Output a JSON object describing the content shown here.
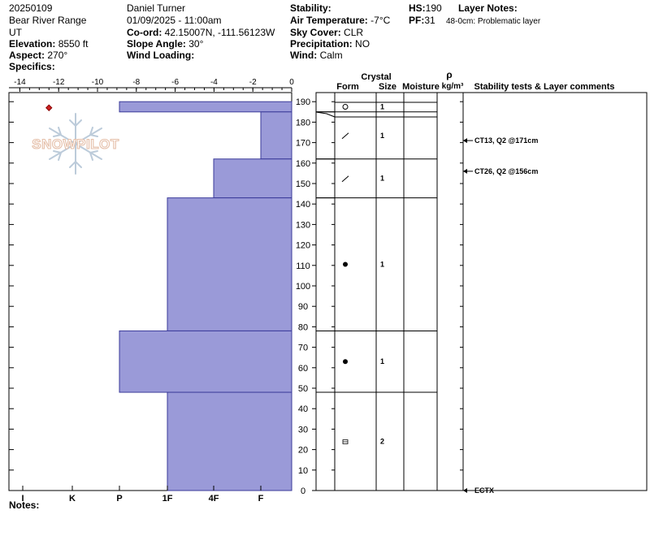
{
  "header": {
    "date_code": "20250109",
    "range": "Bear River Range",
    "state": "UT",
    "elevation_label": "Elevation:",
    "elevation_value": "8550 ft",
    "aspect_label": "Aspect:",
    "aspect_value": "270°",
    "specifics_label": "Specifics:",
    "observer": "Daniel Turner",
    "datetime": "01/09/2025 - 11:00am",
    "coord_label": "Co-ord:",
    "coord_value": "42.15007N, -111.56123W",
    "slope_label": "Slope Angle:",
    "slope_value": "30°",
    "wind_loading_label": "Wind Loading:",
    "stability_label": "Stability:",
    "air_temp_label": "Air Temperature:",
    "air_temp_value": "-7°C",
    "sky_label": "Sky Cover:",
    "sky_value": "CLR",
    "precip_label": "Precipitation:",
    "precip_value": "NO",
    "wind_label": "Wind:",
    "wind_value": "Calm",
    "hs_label": "HS:",
    "hs_value": "190",
    "pf_label": "PF:",
    "pf_value": "31",
    "layer_notes_label": "Layer Notes:",
    "layer_note": "48-0cm: Problematic layer"
  },
  "watermark": {
    "text": "SNOWPILOT"
  },
  "notes_label": "Notes:",
  "chart_data": {
    "type": "bar",
    "temperature_axis": {
      "ticks": [
        -14,
        -12,
        -10,
        -8,
        -6,
        -4,
        -2,
        0
      ],
      "range": [
        -14.5,
        0
      ]
    },
    "hardness_axis": {
      "labels": [
        "I",
        "K",
        "P",
        "1F",
        "4F",
        "F"
      ]
    },
    "height_axis": {
      "range": [
        0,
        190
      ],
      "ticks": [
        0,
        10,
        20,
        30,
        40,
        50,
        60,
        70,
        80,
        90,
        100,
        110,
        120,
        130,
        140,
        150,
        160,
        170,
        180,
        190
      ]
    },
    "temperature_profile": [
      {
        "height": 187,
        "temp": -12.5
      }
    ],
    "hardness_layers": [
      {
        "top": 190,
        "bottom": 185,
        "hardness": "P"
      },
      {
        "top": 185,
        "bottom": 162,
        "hardness": "F"
      },
      {
        "top": 162,
        "bottom": 143,
        "hardness": "4F"
      },
      {
        "top": 143,
        "bottom": 78,
        "hardness": "1F"
      },
      {
        "top": 78,
        "bottom": 48,
        "hardness": "P"
      },
      {
        "top": 48,
        "bottom": 0,
        "hardness": "1F"
      }
    ],
    "columns": {
      "crystal": "Crystal",
      "form": "Form",
      "size": "Size",
      "moisture": "Moisture",
      "rho": "ρ",
      "density_unit": "kg/m³",
      "comments": "Stability tests & Layer comments"
    },
    "crystal_layers": [
      {
        "top": 190,
        "bottom": 185,
        "form": "circle",
        "size": "1"
      },
      {
        "top": 185,
        "bottom": 162,
        "form": "slash",
        "size": "1"
      },
      {
        "top": 162,
        "bottom": 143,
        "form": "slash",
        "size": "1"
      },
      {
        "top": 143,
        "bottom": 78,
        "form": "dot",
        "size": "1"
      },
      {
        "top": 78,
        "bottom": 48,
        "form": "dot",
        "size": "1"
      },
      {
        "top": 48,
        "bottom": 0,
        "form": "facet",
        "size": "2"
      }
    ],
    "stability_tests": [
      {
        "height": 171,
        "text": "CT13, Q2 @171cm"
      },
      {
        "height": 156,
        "text": "CT26, Q2 @156cm"
      },
      {
        "height": 0,
        "text": "ECTX"
      }
    ]
  }
}
